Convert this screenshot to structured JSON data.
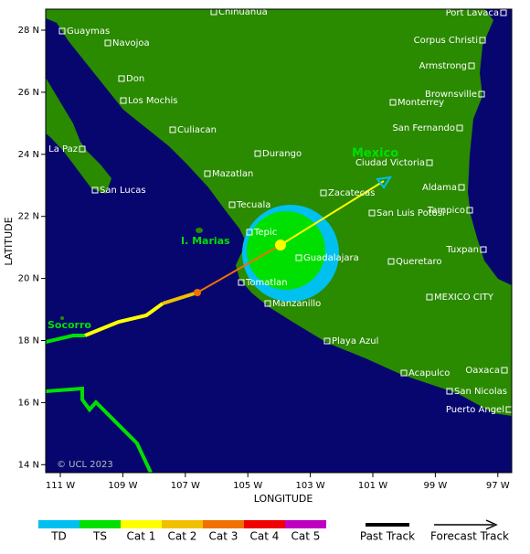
{
  "map": {
    "x_label": "LONGITUDE",
    "y_label": "LATITUDE",
    "x_ticks": [
      "111 W",
      "109 W",
      "107 W",
      "105 W",
      "103 W",
      "101 W",
      "99 W",
      "97 W"
    ],
    "y_ticks": [
      "28 N",
      "26 N",
      "24 N",
      "22 N",
      "20 N",
      "18 N",
      "16 N",
      "14 N"
    ],
    "cities": [
      "Chihuahua",
      "Port Lavaca",
      "Guaymas",
      "Corpus Christi",
      "Navojoa",
      "Armstrong",
      "Don",
      "Brownsville",
      "Los Mochis",
      "Monterrey",
      "Culiacan",
      "San Fernando",
      "La Paz",
      "Durango",
      "Ciudad Victoria",
      "Mazatlan",
      "San Lucas",
      "Zacatecas",
      "Aldama",
      "Tecuala",
      "Tampico",
      "San Luis Potosi",
      "Tepic",
      "Tuxpan",
      "Guadalajara",
      "Queretaro",
      "Tomatlan",
      "MEXICO CITY",
      "Manzanillo",
      "Playa Azul",
      "Acapulco",
      "Oaxaca",
      "San Nicolas",
      "Puerto Angel"
    ],
    "country": "Mexico",
    "island": "I. Marias",
    "socorro": "Socorro",
    "credit": "© UCL 2023"
  },
  "legend": {
    "categories": [
      {
        "label": "TD",
        "color": "#00c0f0"
      },
      {
        "label": "TS",
        "color": "#00e000"
      },
      {
        "label": "Cat 1",
        "color": "#ffff00"
      },
      {
        "label": "Cat 2",
        "color": "#f0c000"
      },
      {
        "label": "Cat 3",
        "color": "#f07000"
      },
      {
        "label": "Cat 4",
        "color": "#f00000"
      },
      {
        "label": "Cat 5",
        "color": "#c000c0"
      }
    ],
    "past_track": "Past Track",
    "forecast_track": "Forecast Track"
  }
}
